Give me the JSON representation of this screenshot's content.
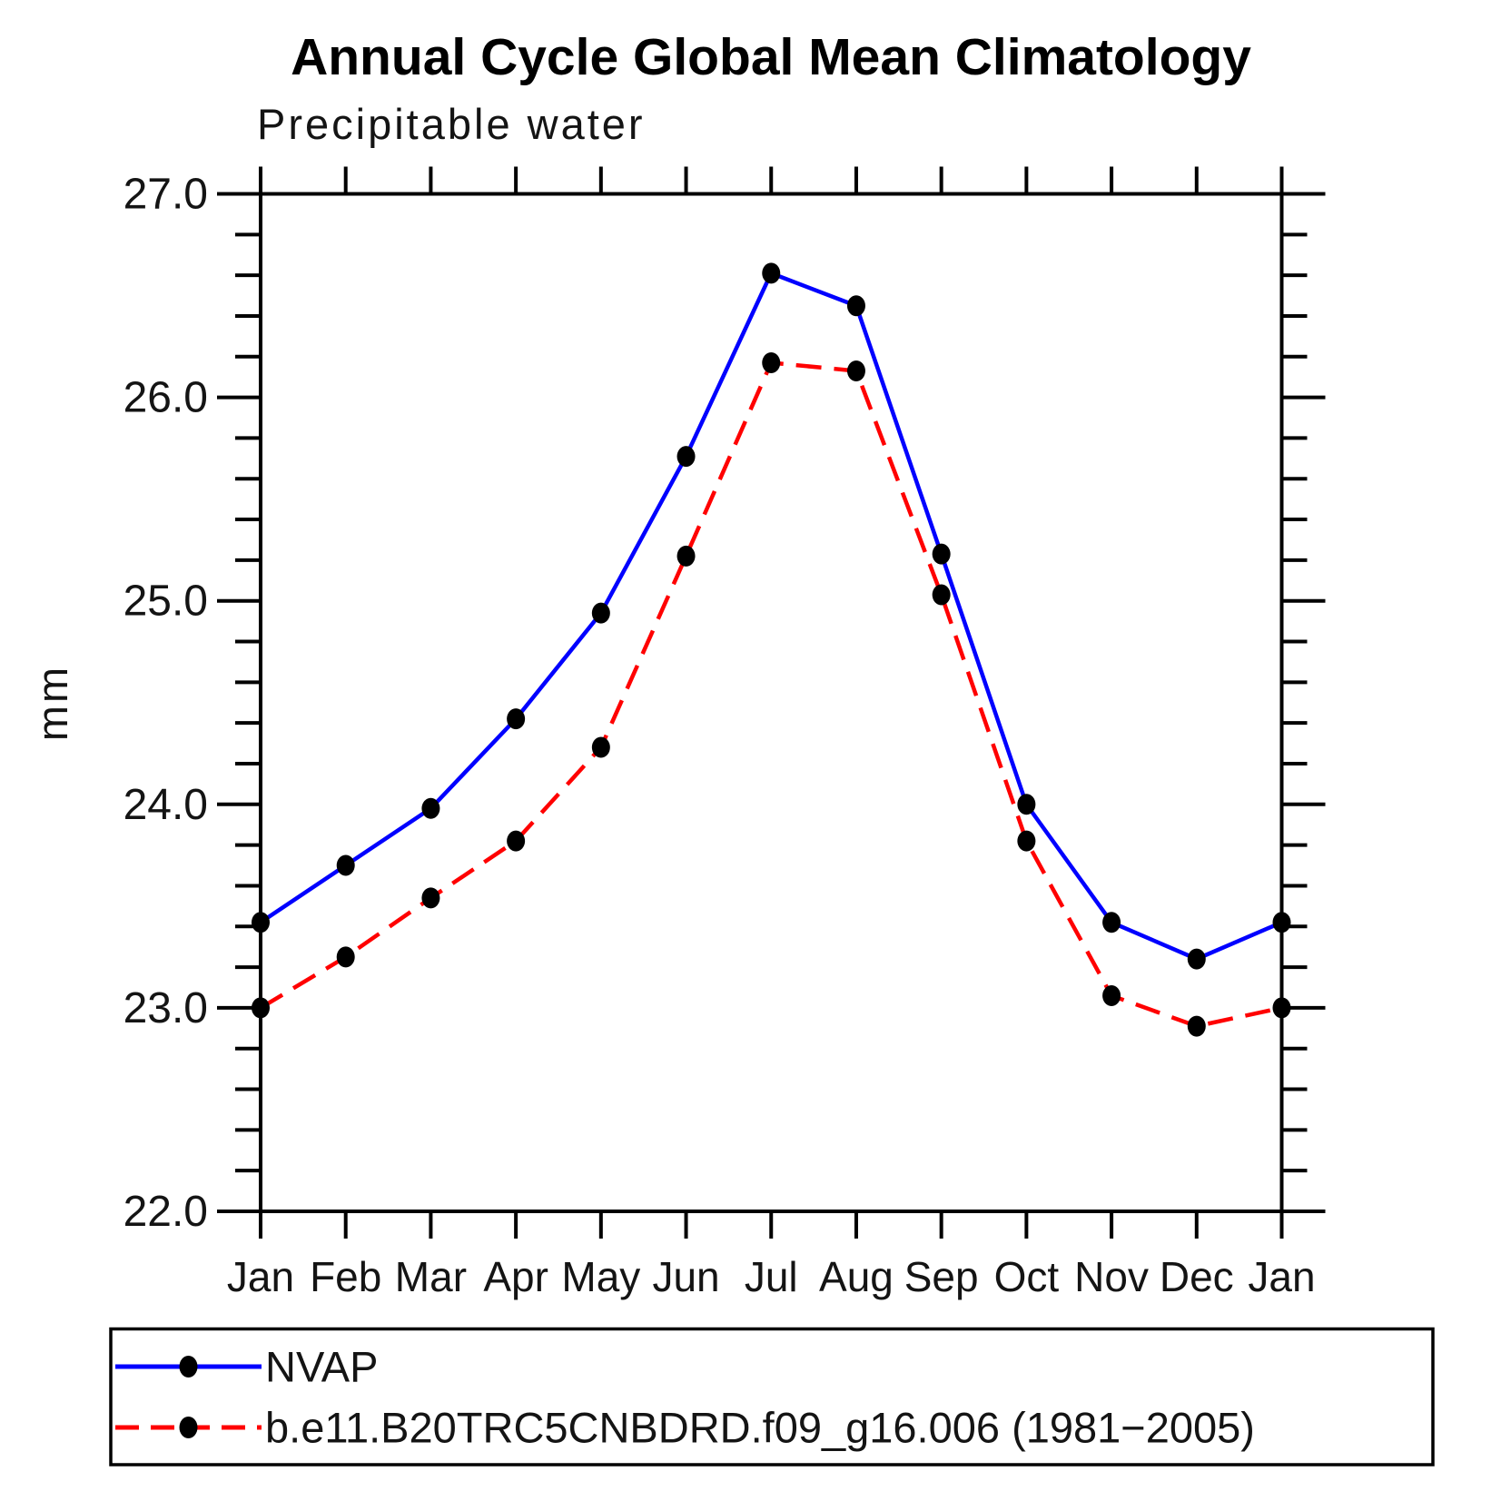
{
  "header": {
    "title": "Annual Cycle Global Mean Climatology",
    "subtitle": "Precipitable water"
  },
  "chart_data": {
    "type": "line",
    "title": "Annual Cycle Global Mean Climatology",
    "subtitle": "Precipitable water",
    "ylabel": "mm",
    "xlabel": "",
    "categories": [
      "Jan",
      "Feb",
      "Mar",
      "Apr",
      "May",
      "Jun",
      "Jul",
      "Aug",
      "Sep",
      "Oct",
      "Nov",
      "Dec",
      "Jan"
    ],
    "series": [
      {
        "name": "NVAP",
        "color": "#0000ff",
        "line_style": "solid",
        "marker": "filled-circle",
        "marker_color": "#000000",
        "values": [
          23.42,
          23.7,
          23.98,
          24.42,
          24.94,
          25.71,
          26.61,
          26.45,
          25.23,
          24.0,
          23.42,
          23.24,
          23.42
        ]
      },
      {
        "name": "b.e11.B20TRC5CNBDRD.f09_g16.006 (1981−2005)",
        "color": "#ff0000",
        "line_style": "dashed",
        "marker": "filled-circle",
        "marker_color": "#000000",
        "values": [
          23.0,
          23.25,
          23.54,
          23.82,
          24.28,
          25.22,
          26.17,
          26.13,
          25.03,
          23.82,
          23.06,
          22.91,
          23.0
        ]
      }
    ],
    "ylim": [
      22.0,
      27.0
    ],
    "ytick_interval": 1.0,
    "yminor_interval": 0.2,
    "ytick_labels": [
      "22.0",
      "23.0",
      "24.0",
      "25.0",
      "26.0",
      "27.0"
    ],
    "grid": false,
    "legend_position": "bottom"
  }
}
